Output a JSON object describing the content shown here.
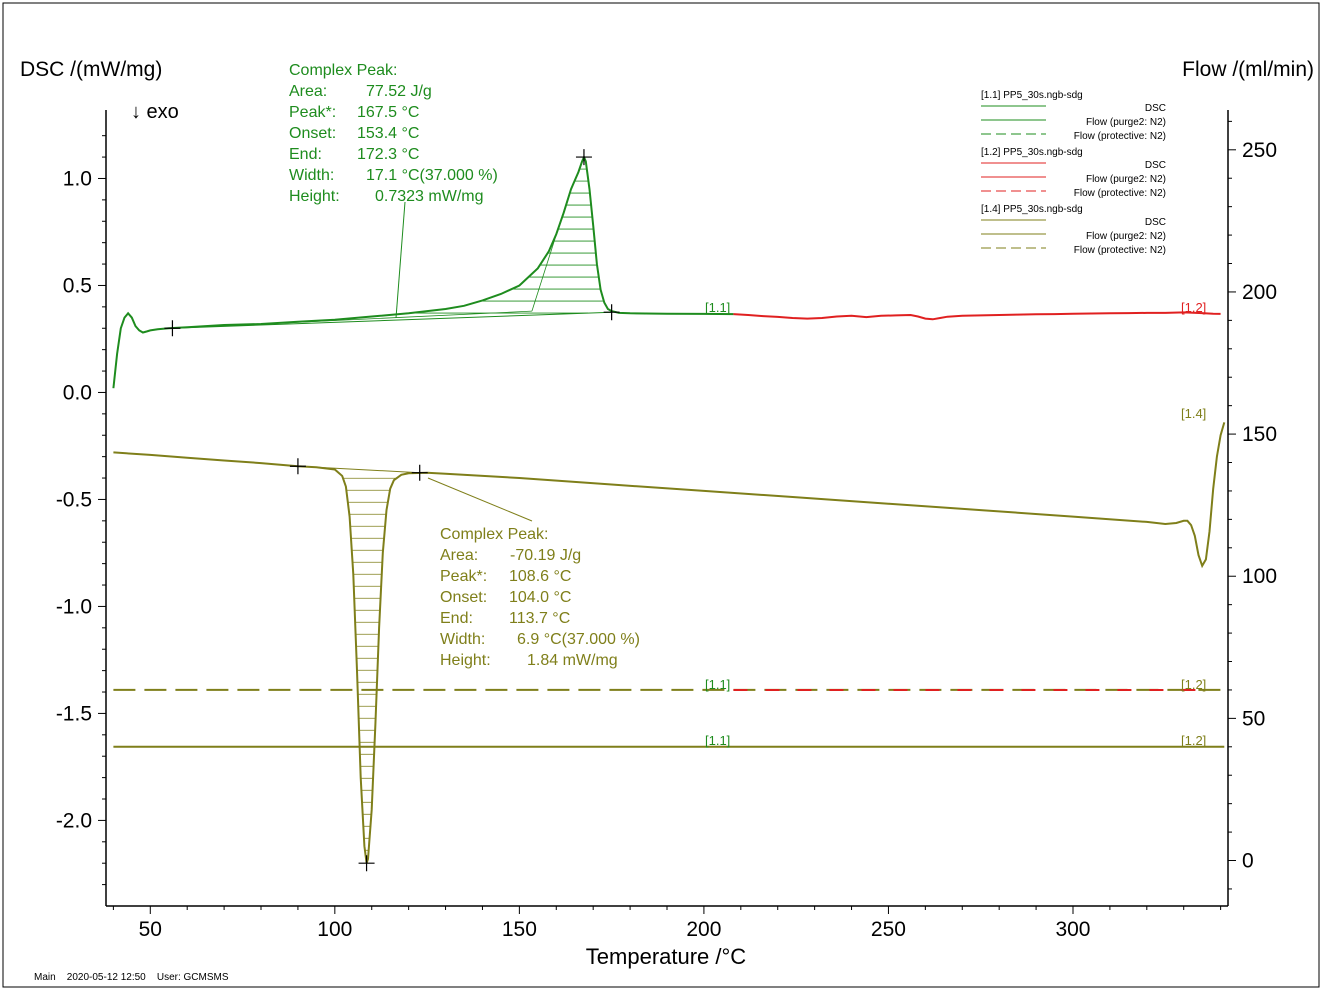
{
  "colors": {
    "green": "#1e8c1e",
    "red": "#e02020",
    "olive": "#7f7f1a",
    "hatch_green": "#1e8c1e",
    "hatch_olive": "#7f7f1a",
    "axis": "#000000"
  },
  "labels": {
    "y_left": "DSC /(mW/mg)",
    "y_right": "Flow /(ml/min)",
    "x": "Temperature /°C",
    "exo": "↓ exo",
    "footer": "Main    2020-05-12 12:50    User: GCMSMS"
  },
  "legend": [
    {
      "file": "[1.1]  PP5_30s.ngb-sdg",
      "color": "green",
      "rows": [
        "DSC",
        "Flow (purge2: N2)",
        "Flow (protective: N2)"
      ]
    },
    {
      "file": "[1.2]  PP5_30s.ngb-sdg",
      "color": "red",
      "rows": [
        "DSC",
        "Flow (purge2: N2)",
        "Flow (protective: N2)"
      ]
    },
    {
      "file": "[1.4]  PP5_30s.ngb-sdg",
      "color": "olive",
      "rows": [
        "DSC",
        "Flow (purge2: N2)",
        "Flow (protective: N2)"
      ]
    }
  ],
  "peak_green": {
    "title": "Complex Peak:",
    "rows": [
      {
        "k": "Area:",
        "v": "77.52 J/g"
      },
      {
        "k": "Peak*:",
        "v": "167.5 °C"
      },
      {
        "k": "Onset:",
        "v": "153.4 °C"
      },
      {
        "k": "End:",
        "v": "172.3 °C"
      },
      {
        "k": "Width:",
        "v": "17.1 °C(37.000 %)"
      },
      {
        "k": "Height:",
        "v": "0.7323 mW/mg"
      }
    ]
  },
  "peak_olive": {
    "title": "Complex Peak:",
    "rows": [
      {
        "k": "Area:",
        "v": "-70.19 J/g"
      },
      {
        "k": "Peak*:",
        "v": "108.6 °C"
      },
      {
        "k": "Onset:",
        "v": "104.0 °C"
      },
      {
        "k": "End:",
        "v": "113.7 °C"
      },
      {
        "k": "Width:",
        "v": "6.9 °C(37.000 %)"
      },
      {
        "k": "Height:",
        "v": "1.84 mW/mg"
      }
    ]
  },
  "curve_tags": {
    "dsc_11": "[1.1]",
    "dsc_12": "[1.2]",
    "dsc_14": "[1.4]",
    "flow_11": "[1.1]",
    "flow_12": "[1.2]",
    "flow2_11": "[1.1]",
    "flow2_12": "[1.2]"
  },
  "chart_data": {
    "type": "line",
    "xlabel": "Temperature /°C",
    "ylabel": "DSC /(mW/mg)",
    "y2label": "Flow /(ml/min)",
    "xlim": [
      38,
      342
    ],
    "ylim": [
      -2.4,
      1.32
    ],
    "y2lim": [
      -16,
      264
    ],
    "xticks": [
      50,
      100,
      150,
      200,
      250,
      300
    ],
    "yticks": [
      1.0,
      0.5,
      0.0,
      -0.5,
      -1.0,
      -1.5,
      -2.0
    ],
    "y2ticks": [
      250,
      200,
      150,
      100,
      50,
      0
    ],
    "grid": false,
    "legend_position": "top-right",
    "series": [
      {
        "name": "[1.1] DSC",
        "color": "green",
        "axis": "left",
        "x": [
          40,
          41,
          42,
          43,
          44,
          45,
          46,
          47,
          48,
          49,
          50,
          52,
          55,
          60,
          70,
          80,
          90,
          100,
          110,
          120,
          130,
          135,
          140,
          145,
          150,
          155,
          158,
          160,
          162,
          164,
          165,
          166,
          167,
          167.5,
          168,
          169,
          170,
          171,
          172,
          173,
          174,
          175,
          177,
          180,
          190,
          200,
          208
        ],
        "y": [
          0.02,
          0.18,
          0.3,
          0.35,
          0.37,
          0.35,
          0.31,
          0.29,
          0.28,
          0.285,
          0.29,
          0.295,
          0.3,
          0.305,
          0.315,
          0.32,
          0.33,
          0.34,
          0.355,
          0.37,
          0.39,
          0.405,
          0.43,
          0.46,
          0.5,
          0.58,
          0.66,
          0.74,
          0.84,
          0.95,
          0.99,
          1.03,
          1.08,
          1.1,
          1.08,
          0.95,
          0.78,
          0.6,
          0.48,
          0.42,
          0.39,
          0.38,
          0.372,
          0.37,
          0.368,
          0.367,
          0.366
        ]
      },
      {
        "name": "[1.2] DSC",
        "color": "red",
        "axis": "left",
        "x": [
          208,
          212,
          216,
          220,
          224,
          228,
          232,
          236,
          240,
          244,
          248,
          252,
          256,
          258,
          260,
          262,
          264,
          266,
          270,
          275,
          280,
          285,
          290,
          295,
          300,
          305,
          310,
          315,
          320,
          325,
          330,
          335,
          338,
          340
        ],
        "y": [
          0.366,
          0.362,
          0.357,
          0.353,
          0.348,
          0.345,
          0.348,
          0.355,
          0.358,
          0.352,
          0.358,
          0.36,
          0.362,
          0.355,
          0.345,
          0.342,
          0.348,
          0.354,
          0.358,
          0.36,
          0.362,
          0.364,
          0.365,
          0.366,
          0.368,
          0.369,
          0.37,
          0.371,
          0.372,
          0.372,
          0.374,
          0.371,
          0.368,
          0.367
        ]
      },
      {
        "name": "[1.4] DSC",
        "color": "olive",
        "axis": "left",
        "x": [
          40,
          50,
          60,
          70,
          80,
          90,
          95,
          100,
          102,
          103,
          104,
          105,
          106,
          107,
          108,
          108.6,
          109,
          110,
          111,
          112,
          113,
          114,
          115,
          116,
          118,
          120,
          125,
          130,
          150,
          175,
          200,
          225,
          250,
          275,
          300,
          320,
          325,
          328,
          330,
          331,
          332,
          333,
          334,
          335,
          336,
          337,
          338,
          339,
          340,
          341
        ],
        "y": [
          -0.28,
          -0.292,
          -0.305,
          -0.318,
          -0.33,
          -0.345,
          -0.35,
          -0.36,
          -0.39,
          -0.44,
          -0.58,
          -0.85,
          -1.3,
          -1.8,
          -2.12,
          -2.2,
          -2.18,
          -1.95,
          -1.55,
          -1.1,
          -0.75,
          -0.55,
          -0.45,
          -0.41,
          -0.385,
          -0.378,
          -0.375,
          -0.38,
          -0.4,
          -0.43,
          -0.46,
          -0.49,
          -0.52,
          -0.55,
          -0.58,
          -0.605,
          -0.615,
          -0.61,
          -0.6,
          -0.6,
          -0.62,
          -0.67,
          -0.76,
          -0.81,
          -0.78,
          -0.65,
          -0.45,
          -0.3,
          -0.2,
          -0.14
        ]
      },
      {
        "name": "Flow (protective: N2)",
        "color": "olive",
        "axis": "right",
        "dashed": true,
        "x": [
          40,
          341
        ],
        "y": [
          60,
          60
        ]
      },
      {
        "name": "Flow (purge2: N2)",
        "color": "olive",
        "axis": "right",
        "dashed": false,
        "x": [
          40,
          341
        ],
        "y": [
          40,
          40
        ]
      }
    ],
    "annotations": [
      {
        "type": "marker",
        "series": "[1.1] DSC",
        "x": 56,
        "y": 0.3
      },
      {
        "type": "marker",
        "series": "[1.1] DSC",
        "x": 167.5,
        "y": 1.1
      },
      {
        "type": "marker",
        "series": "[1.1] DSC",
        "x": 175,
        "y": 0.375
      },
      {
        "type": "marker",
        "series": "[1.4] DSC",
        "x": 90,
        "y": -0.345
      },
      {
        "type": "marker",
        "series": "[1.4] DSC",
        "x": 123,
        "y": -0.375
      },
      {
        "type": "marker",
        "series": "[1.4] DSC",
        "x": 108.6,
        "y": -2.2
      }
    ]
  }
}
